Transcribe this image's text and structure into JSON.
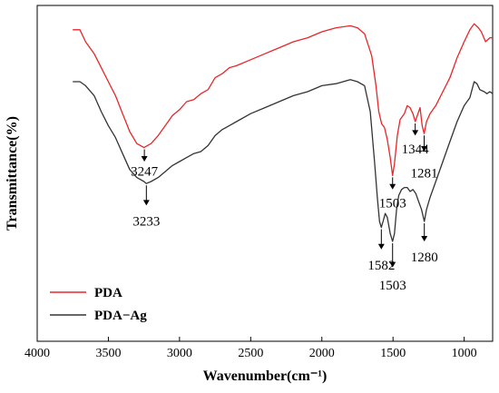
{
  "chart_data": {
    "type": "line",
    "xlabel": "Wavenumber(cm⁻¹)",
    "ylabel": "Transmittance(%)",
    "xlim": [
      4000,
      800
    ],
    "x_reversed": true,
    "y_ticks_shown": false,
    "x_ticks": [
      4000,
      3500,
      3000,
      2500,
      2000,
      1500,
      1000
    ],
    "legend_position": "bottom-left",
    "series": [
      {
        "name": "PDA",
        "color": "#e8262a",
        "points": [
          [
            3750,
            86
          ],
          [
            3700,
            86
          ],
          [
            3660,
            80
          ],
          [
            3600,
            74
          ],
          [
            3550,
            67
          ],
          [
            3500,
            60
          ],
          [
            3450,
            53
          ],
          [
            3400,
            44
          ],
          [
            3350,
            35
          ],
          [
            3300,
            29
          ],
          [
            3250,
            27
          ],
          [
            3200,
            29
          ],
          [
            3150,
            33
          ],
          [
            3100,
            38
          ],
          [
            3050,
            43
          ],
          [
            3000,
            46
          ],
          [
            2950,
            50
          ],
          [
            2900,
            51
          ],
          [
            2850,
            54
          ],
          [
            2800,
            56
          ],
          [
            2750,
            62
          ],
          [
            2700,
            64
          ],
          [
            2650,
            67
          ],
          [
            2600,
            68
          ],
          [
            2500,
            71
          ],
          [
            2400,
            74
          ],
          [
            2300,
            77
          ],
          [
            2200,
            80
          ],
          [
            2100,
            82
          ],
          [
            2000,
            85
          ],
          [
            1900,
            87
          ],
          [
            1800,
            88
          ],
          [
            1750,
            87
          ],
          [
            1700,
            84
          ],
          [
            1650,
            73
          ],
          [
            1620,
            58
          ],
          [
            1600,
            45
          ],
          [
            1580,
            39
          ],
          [
            1560,
            37
          ],
          [
            1540,
            31
          ],
          [
            1520,
            22
          ],
          [
            1503,
            13
          ],
          [
            1490,
            19
          ],
          [
            1470,
            33
          ],
          [
            1450,
            41
          ],
          [
            1420,
            44
          ],
          [
            1400,
            48
          ],
          [
            1380,
            47
          ],
          [
            1360,
            44
          ],
          [
            1344,
            40
          ],
          [
            1330,
            43
          ],
          [
            1310,
            47
          ],
          [
            1295,
            38
          ],
          [
            1281,
            34
          ],
          [
            1265,
            40
          ],
          [
            1240,
            44
          ],
          [
            1200,
            48
          ],
          [
            1150,
            55
          ],
          [
            1100,
            62
          ],
          [
            1050,
            72
          ],
          [
            1000,
            80
          ],
          [
            960,
            86
          ],
          [
            930,
            89
          ],
          [
            900,
            87
          ],
          [
            880,
            85
          ],
          [
            850,
            80
          ],
          [
            820,
            82
          ],
          [
            800,
            82
          ]
        ]
      },
      {
        "name": "PDA−Ag",
        "color": "#333333",
        "points": [
          [
            3750,
            60
          ],
          [
            3700,
            60
          ],
          [
            3660,
            58
          ],
          [
            3600,
            53
          ],
          [
            3550,
            45
          ],
          [
            3500,
            38
          ],
          [
            3450,
            32
          ],
          [
            3400,
            24
          ],
          [
            3350,
            16
          ],
          [
            3300,
            12
          ],
          [
            3250,
            10
          ],
          [
            3233,
            9
          ],
          [
            3200,
            10
          ],
          [
            3150,
            12
          ],
          [
            3100,
            15
          ],
          [
            3050,
            18
          ],
          [
            3000,
            20
          ],
          [
            2950,
            22
          ],
          [
            2900,
            24
          ],
          [
            2850,
            25
          ],
          [
            2800,
            28
          ],
          [
            2750,
            33
          ],
          [
            2700,
            36
          ],
          [
            2650,
            38
          ],
          [
            2600,
            40
          ],
          [
            2500,
            44
          ],
          [
            2400,
            47
          ],
          [
            2300,
            50
          ],
          [
            2200,
            53
          ],
          [
            2100,
            55
          ],
          [
            2000,
            58
          ],
          [
            1900,
            59
          ],
          [
            1800,
            61
          ],
          [
            1750,
            60
          ],
          [
            1700,
            58
          ],
          [
            1660,
            45
          ],
          [
            1630,
            20
          ],
          [
            1610,
            2
          ],
          [
            1595,
            -10
          ],
          [
            1582,
            -13
          ],
          [
            1570,
            -10
          ],
          [
            1555,
            -6
          ],
          [
            1540,
            -8
          ],
          [
            1520,
            -16
          ],
          [
            1503,
            -20
          ],
          [
            1490,
            -16
          ],
          [
            1475,
            -4
          ],
          [
            1460,
            3
          ],
          [
            1440,
            6
          ],
          [
            1420,
            7
          ],
          [
            1400,
            7
          ],
          [
            1380,
            5
          ],
          [
            1360,
            6
          ],
          [
            1340,
            4
          ],
          [
            1320,
            0
          ],
          [
            1300,
            -4
          ],
          [
            1280,
            -10
          ],
          [
            1265,
            -4
          ],
          [
            1240,
            2
          ],
          [
            1200,
            10
          ],
          [
            1150,
            20
          ],
          [
            1100,
            30
          ],
          [
            1050,
            40
          ],
          [
            1000,
            48
          ],
          [
            960,
            52
          ],
          [
            930,
            60
          ],
          [
            910,
            59
          ],
          [
            890,
            56
          ],
          [
            860,
            55
          ],
          [
            840,
            54
          ],
          [
            820,
            55
          ],
          [
            800,
            54
          ]
        ]
      }
    ],
    "annotations": [
      {
        "label": "3247",
        "x": 3247,
        "series": 0,
        "y_from": 27,
        "y_to": 20,
        "text_y": 13
      },
      {
        "label": "1503",
        "x": 1503,
        "series": 0,
        "y_from": 13,
        "y_to": 6,
        "text_y": -3
      },
      {
        "label": "1344",
        "x": 1344,
        "series": 0,
        "y_from": 40,
        "y_to": 33,
        "text_y": 24
      },
      {
        "label": "1281",
        "x": 1281,
        "series": 0,
        "y_from": 34,
        "y_to": 25,
        "text_y": 12
      },
      {
        "label": "3233",
        "x": 3233,
        "series": 1,
        "y_from": 9,
        "y_to": -2,
        "text_y": -12
      },
      {
        "label": "1582",
        "x": 1582,
        "series": 1,
        "y_from": -13,
        "y_to": -24,
        "text_y": -34
      },
      {
        "label": "1503",
        "x": 1503,
        "series": 1,
        "y_from": -20,
        "y_to": -33,
        "text_y": -44
      },
      {
        "label": "1280",
        "x": 1280,
        "series": 1,
        "y_from": -10,
        "y_to": -20,
        "text_y": -30
      }
    ]
  }
}
